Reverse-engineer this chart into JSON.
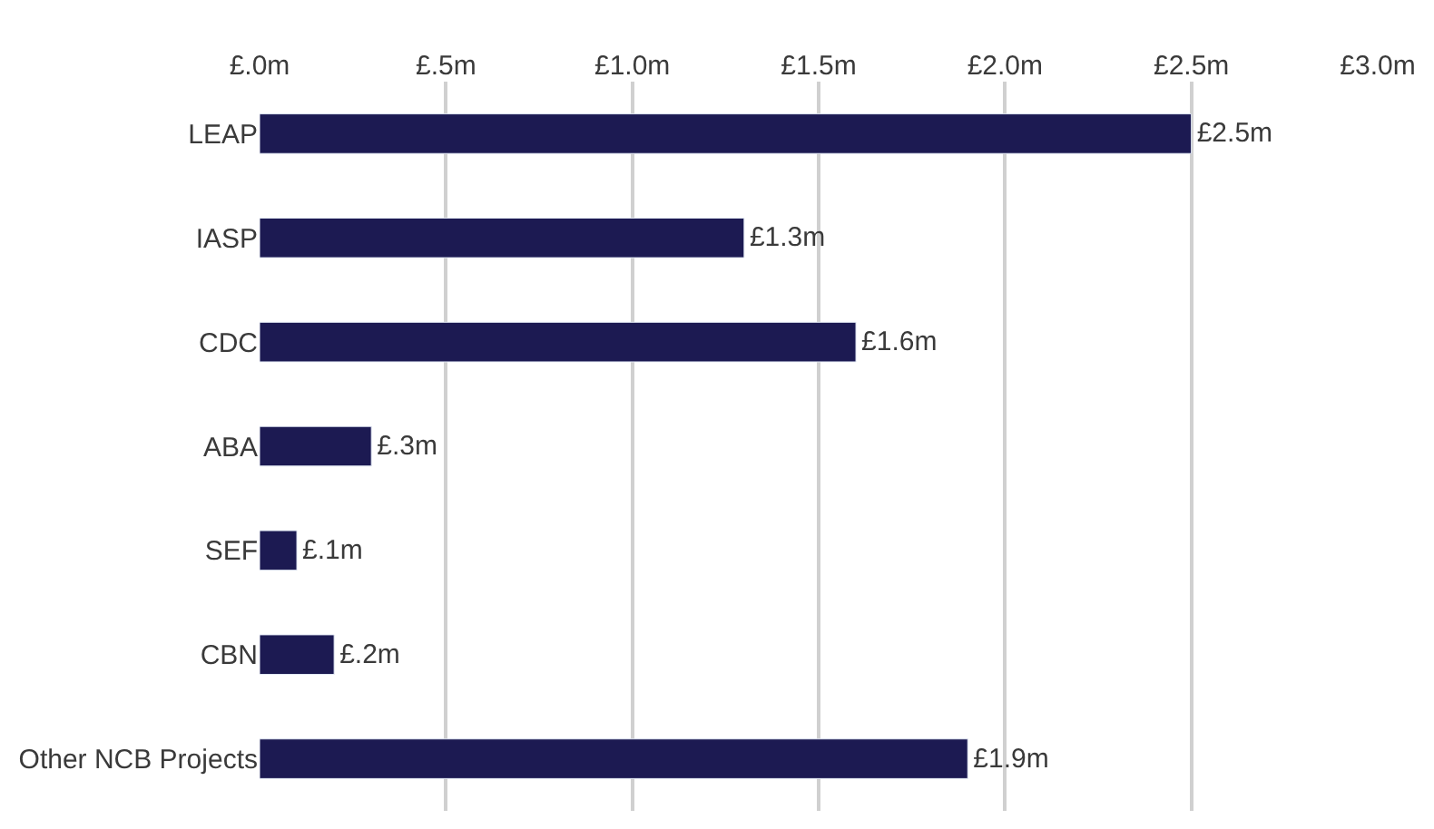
{
  "chart_data": {
    "type": "bar",
    "orientation": "horizontal",
    "categories": [
      "LEAP",
      "IASP",
      "CDC",
      "ABA",
      "SEF",
      "CBN",
      "Other NCB Projects"
    ],
    "values": [
      2.5,
      1.3,
      1.6,
      0.3,
      0.1,
      0.2,
      1.9
    ],
    "value_labels": [
      "£2.5m",
      "£1.3m",
      "£1.6m",
      "£.3m",
      "£.1m",
      "£.2m",
      "£1.9m"
    ],
    "color": "#1c1a52",
    "xlim": [
      0,
      3.0
    ],
    "xticks": [
      {
        "value": 0,
        "label": "£.0m"
      },
      {
        "value": 0.5,
        "label": "£.5m"
      },
      {
        "value": 1.0,
        "label": "£1.0m"
      },
      {
        "value": 1.5,
        "label": "£1.5m"
      },
      {
        "value": 2.0,
        "label": "£2.0m"
      },
      {
        "value": 2.5,
        "label": "£2.5m"
      },
      {
        "value": 3.0,
        "label": "£3.0m"
      }
    ],
    "grid": "x",
    "legend": false
  }
}
